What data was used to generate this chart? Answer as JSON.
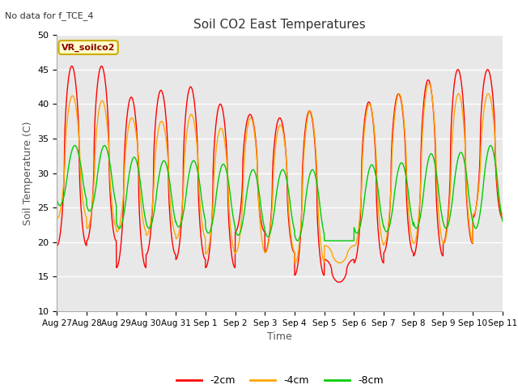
{
  "title": "Soil CO2 East Temperatures",
  "no_data_text": "No data for f_TCE_4",
  "vr_label": "VR_soilco2",
  "xlabel": "Time",
  "ylabel": "Soil Temperature (C)",
  "ylim": [
    10,
    50
  ],
  "yticks": [
    10,
    15,
    20,
    25,
    30,
    35,
    40,
    45,
    50
  ],
  "plot_bg": "#e8e8e8",
  "fig_bg": "#ffffff",
  "grid_color": "#ffffff",
  "legend_entries": [
    "-2cm",
    "-4cm",
    "-8cm"
  ],
  "legend_colors": [
    "#ff0000",
    "#ffa500",
    "#00cc00"
  ],
  "x_tick_labels": [
    "Aug 27",
    "Aug 28",
    "Aug 29",
    "Aug 30",
    "Aug 31",
    "Sep 1",
    "Sep 2",
    "Sep 3",
    "Sep 4",
    "Sep 5",
    "Sep 6",
    "Sep 7",
    "Sep 8",
    "Sep 9",
    "Sep 10",
    "Sep 11"
  ],
  "title_fontsize": 11,
  "label_fontsize": 9,
  "tick_fontsize": 8
}
